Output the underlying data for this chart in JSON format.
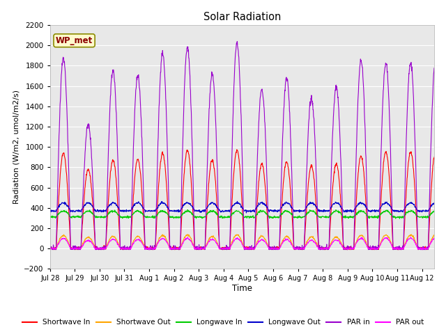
{
  "title": "Solar Radiation",
  "xlabel": "Time",
  "ylabel": "Radiation (W/m2, umol/m2/s)",
  "ylim": [
    -200,
    2200
  ],
  "yticks": [
    -200,
    0,
    200,
    400,
    600,
    800,
    1000,
    1200,
    1400,
    1600,
    1800,
    2000,
    2200
  ],
  "num_days": 15.5,
  "xtick_labels": [
    "Jul 28",
    "Jul 29",
    "Jul 30",
    "Jul 31",
    "Aug 1",
    "Aug 2",
    "Aug 3",
    "Aug 4",
    "Aug 5",
    "Aug 6",
    "Aug 7",
    "Aug 8",
    "Aug 9",
    "Aug 10",
    "Aug 11",
    "Aug 12"
  ],
  "annotation_text": "WP_met",
  "annotation_color": "#8B0000",
  "annotation_bg": "#FFFACD",
  "annotation_edge": "#8B8B00",
  "series": {
    "shortwave_in": {
      "color": "#FF0000",
      "label": "Shortwave In",
      "peaks": [
        940,
        780,
        870,
        880,
        940,
        970,
        870,
        970,
        830,
        850,
        810,
        830,
        910,
        950,
        950,
        950
      ]
    },
    "shortwave_out": {
      "color": "#FFA500",
      "label": "Shortwave Out",
      "peaks": [
        130,
        110,
        120,
        120,
        130,
        135,
        120,
        135,
        120,
        120,
        115,
        115,
        130,
        135,
        135,
        135
      ]
    },
    "longwave_in": {
      "color": "#00CC00",
      "label": "Longwave In",
      "base": 330,
      "day_bump": 60,
      "night_val": 310
    },
    "longwave_out": {
      "color": "#0000CC",
      "label": "Longwave Out",
      "base": 390,
      "day_bump": 80,
      "night_val": 370
    },
    "par_in": {
      "color": "#9900CC",
      "label": "PAR in",
      "peaks": [
        1880,
        1220,
        1750,
        1700,
        1920,
        1980,
        1720,
        2020,
        1570,
        1680,
        1480,
        1590,
        1850,
        1830,
        1830,
        1830
      ]
    },
    "par_out": {
      "color": "#FF00FF",
      "label": "PAR out",
      "peaks": [
        100,
        80,
        90,
        90,
        100,
        100,
        90,
        100,
        85,
        90,
        80,
        85,
        100,
        105,
        105,
        105
      ]
    }
  },
  "background_color": "#E8E8E8",
  "figure_bg": "#FFFFFF",
  "grid_color": "#FFFFFF",
  "linewidth": 0.8,
  "sunrise": 6,
  "sunset": 20
}
